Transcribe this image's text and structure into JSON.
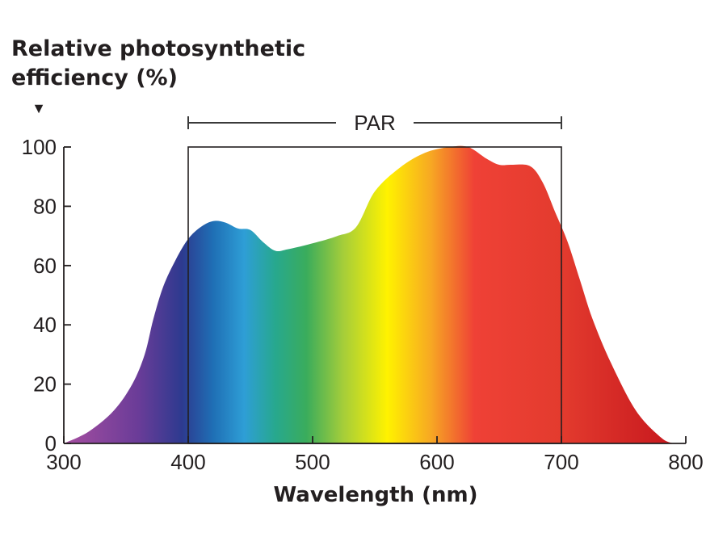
{
  "chart_data": {
    "type": "area",
    "ylabel": [
      "Relative photosynthetic",
      "efficiency (%)"
    ],
    "ylabel_marker": "▼",
    "xlabel": "Wavelength (nm)",
    "xlim": [
      300,
      800
    ],
    "ylim": [
      0,
      100
    ],
    "x_ticks": [
      300,
      400,
      500,
      600,
      700,
      800
    ],
    "y_ticks": [
      0,
      20,
      40,
      60,
      80,
      100
    ],
    "x_tick_labels": [
      "300",
      "400",
      "500",
      "600",
      "700",
      "800"
    ],
    "y_tick_labels": [
      "0",
      "20",
      "40",
      "60",
      "80",
      "100"
    ],
    "grid": false,
    "par_band": {
      "label": "PAR",
      "start": 400,
      "end": 700
    },
    "curve": [
      {
        "x": 300,
        "y": 0
      },
      {
        "x": 320,
        "y": 4
      },
      {
        "x": 340,
        "y": 11
      },
      {
        "x": 355,
        "y": 20
      },
      {
        "x": 365,
        "y": 30
      },
      {
        "x": 372,
        "y": 42
      },
      {
        "x": 380,
        "y": 53
      },
      {
        "x": 390,
        "y": 62
      },
      {
        "x": 400,
        "y": 69
      },
      {
        "x": 410,
        "y": 73
      },
      {
        "x": 420,
        "y": 75
      },
      {
        "x": 430,
        "y": 74.5
      },
      {
        "x": 440,
        "y": 72.5
      },
      {
        "x": 450,
        "y": 72
      },
      {
        "x": 460,
        "y": 68
      },
      {
        "x": 470,
        "y": 65
      },
      {
        "x": 480,
        "y": 65.5
      },
      {
        "x": 500,
        "y": 67.5
      },
      {
        "x": 520,
        "y": 70
      },
      {
        "x": 535,
        "y": 73
      },
      {
        "x": 550,
        "y": 85
      },
      {
        "x": 570,
        "y": 93
      },
      {
        "x": 590,
        "y": 98
      },
      {
        "x": 610,
        "y": 100
      },
      {
        "x": 625,
        "y": 100
      },
      {
        "x": 640,
        "y": 96
      },
      {
        "x": 650,
        "y": 94
      },
      {
        "x": 660,
        "y": 94
      },
      {
        "x": 675,
        "y": 93.5
      },
      {
        "x": 685,
        "y": 88
      },
      {
        "x": 695,
        "y": 78
      },
      {
        "x": 705,
        "y": 68
      },
      {
        "x": 715,
        "y": 55
      },
      {
        "x": 725,
        "y": 42
      },
      {
        "x": 740,
        "y": 27
      },
      {
        "x": 760,
        "y": 11
      },
      {
        "x": 780,
        "y": 2
      },
      {
        "x": 790,
        "y": 0
      }
    ],
    "spectrum_colors": [
      {
        "x": 300,
        "color": "#a64ea0"
      },
      {
        "x": 360,
        "color": "#6a3c98"
      },
      {
        "x": 395,
        "color": "#2d3a8f"
      },
      {
        "x": 420,
        "color": "#1f6fb5"
      },
      {
        "x": 445,
        "color": "#2e9ed6"
      },
      {
        "x": 470,
        "color": "#27a88e"
      },
      {
        "x": 495,
        "color": "#3aac5c"
      },
      {
        "x": 525,
        "color": "#a6ce39"
      },
      {
        "x": 560,
        "color": "#fff200"
      },
      {
        "x": 595,
        "color": "#f7a823"
      },
      {
        "x": 630,
        "color": "#ef4136"
      },
      {
        "x": 700,
        "color": "#e33b2e"
      },
      {
        "x": 800,
        "color": "#c4141c"
      }
    ],
    "colors": {
      "axis": "#231f20",
      "par_line": "#3a3a3a"
    }
  }
}
